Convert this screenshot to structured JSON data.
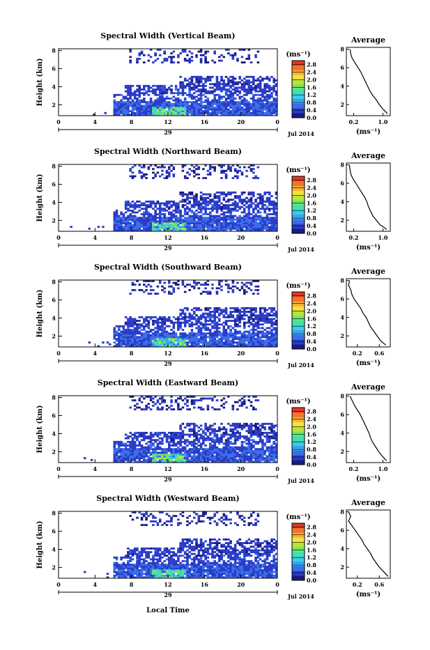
{
  "figure": {
    "xlabel": "Local Time",
    "date_label": "Jul 2014",
    "day_label": "29",
    "colorbar_unit": "(ms⁻¹)",
    "avg_title": "Average",
    "avg_xlabel": "(ms⁻¹)",
    "ylabel": "Height (km)",
    "colorscale": [
      "#1a1a80",
      "#2b3cc8",
      "#3b6fe8",
      "#3aa2f0",
      "#38cfe6",
      "#3fe0b0",
      "#6ee46a",
      "#b8e43a",
      "#f2e23a",
      "#f6b034",
      "#f2742c",
      "#e03a24"
    ]
  },
  "chart_data": [
    {
      "type": "heatmap",
      "title": "Spectral Width (Vertical Beam)",
      "x_ticks": [
        "0",
        "4",
        "8",
        "12",
        "16",
        "20",
        "0"
      ],
      "xlim": [
        0,
        24
      ],
      "y_ticks": [
        "2",
        "4",
        "6",
        "8"
      ],
      "ylim": [
        0.8,
        8.2
      ],
      "colorbar_ticks": [
        "0.0",
        "0.4",
        "0.8",
        "1.2",
        "1.6",
        "2.0",
        "2.4",
        "2.8"
      ],
      "colorbar_range": [
        0.0,
        3.0
      ],
      "avg_profile": {
        "x_ticks": [
          "0.2",
          "1.0"
        ],
        "xlim": [
          0.0,
          1.2
        ],
        "y_ticks": [
          "2",
          "4",
          "6",
          "8"
        ],
        "ylim": [
          0.8,
          8.2
        ],
        "height": [
          8.0,
          7.5,
          7.0,
          6.5,
          6.0,
          5.5,
          5.0,
          4.5,
          4.0,
          3.5,
          3.0,
          2.5,
          2.0,
          1.5,
          1.2,
          1.0
        ],
        "width": [
          0.1,
          0.12,
          0.16,
          0.24,
          0.32,
          0.4,
          0.46,
          0.52,
          0.58,
          0.64,
          0.72,
          0.82,
          0.9,
          1.0,
          1.08,
          1.12
        ]
      }
    },
    {
      "type": "heatmap",
      "title": "Spectral Width (Northward Beam)",
      "x_ticks": [
        "0",
        "4",
        "8",
        "12",
        "16",
        "20",
        "0"
      ],
      "xlim": [
        0,
        24
      ],
      "y_ticks": [
        "2",
        "4",
        "6",
        "8"
      ],
      "ylim": [
        0.8,
        8.2
      ],
      "colorbar_ticks": [
        "0.0",
        "0.4",
        "0.8",
        "1.2",
        "1.6",
        "2.0",
        "2.4",
        "2.8"
      ],
      "colorbar_range": [
        0.0,
        3.0
      ],
      "avg_profile": {
        "x_ticks": [
          "0.2",
          "1.0"
        ],
        "xlim": [
          0.0,
          1.2
        ],
        "y_ticks": [
          "2",
          "4",
          "6",
          "8"
        ],
        "ylim": [
          0.8,
          8.2
        ],
        "height": [
          8.0,
          7.0,
          6.5,
          6.0,
          5.5,
          5.0,
          4.5,
          4.0,
          3.5,
          3.0,
          2.5,
          2.0,
          1.5,
          1.2,
          1.0
        ],
        "width": [
          0.08,
          0.12,
          0.18,
          0.26,
          0.34,
          0.42,
          0.5,
          0.56,
          0.6,
          0.66,
          0.72,
          0.82,
          0.92,
          1.04,
          1.1
        ]
      }
    },
    {
      "type": "heatmap",
      "title": "Spectral Width (Southward Beam)",
      "x_ticks": [
        "0",
        "4",
        "8",
        "12",
        "16",
        "20",
        "0"
      ],
      "xlim": [
        0,
        24
      ],
      "y_ticks": [
        "2",
        "4",
        "6",
        "8"
      ],
      "ylim": [
        0.8,
        8.2
      ],
      "colorbar_ticks": [
        "0.0",
        "0.4",
        "0.8",
        "1.2",
        "1.6",
        "2.0",
        "2.4",
        "2.8"
      ],
      "colorbar_range": [
        0.0,
        3.0
      ],
      "avg_profile": {
        "x_ticks": [
          "0.2",
          "0.6"
        ],
        "xlim": [
          0.0,
          0.8
        ],
        "height": [
          8.0,
          7.5,
          7.0,
          6.5,
          6.0,
          5.5,
          5.0,
          4.5,
          4.0,
          3.5,
          3.0,
          2.5,
          2.0,
          1.5,
          1.0
        ],
        "width": [
          0.06,
          0.04,
          0.08,
          0.1,
          0.14,
          0.2,
          0.26,
          0.3,
          0.36,
          0.4,
          0.44,
          0.5,
          0.56,
          0.62,
          0.72
        ]
      }
    },
    {
      "type": "heatmap",
      "title": "Spectral Width (Eastward Beam)",
      "x_ticks": [
        "0",
        "4",
        "8",
        "12",
        "16",
        "20",
        "0"
      ],
      "xlim": [
        0,
        24
      ],
      "y_ticks": [
        "2",
        "4",
        "6",
        "8"
      ],
      "ylim": [
        0.8,
        8.2
      ],
      "colorbar_ticks": [
        "0.0",
        "0.4",
        "0.8",
        "1.2",
        "1.6",
        "2.0",
        "2.4",
        "2.8"
      ],
      "colorbar_range": [
        0.0,
        3.0
      ],
      "avg_profile": {
        "x_ticks": [
          "0.2",
          "1.0"
        ],
        "xlim": [
          0.0,
          1.2
        ],
        "height": [
          8.0,
          7.5,
          7.0,
          6.5,
          6.0,
          5.5,
          5.0,
          4.5,
          4.0,
          3.5,
          3.0,
          2.5,
          2.0,
          1.5,
          1.0
        ],
        "width": [
          0.1,
          0.16,
          0.22,
          0.3,
          0.38,
          0.44,
          0.5,
          0.56,
          0.62,
          0.66,
          0.72,
          0.8,
          0.88,
          0.98,
          1.1
        ]
      }
    },
    {
      "type": "heatmap",
      "title": "Spectral Width (Westward Beam)",
      "x_ticks": [
        "0",
        "4",
        "8",
        "12",
        "16",
        "20",
        "0"
      ],
      "xlim": [
        0,
        24
      ],
      "y_ticks": [
        "2",
        "4",
        "6",
        "8"
      ],
      "ylim": [
        0.8,
        8.2
      ],
      "colorbar_ticks": [
        "0.0",
        "0.4",
        "0.8",
        "1.2",
        "1.6",
        "2.0",
        "2.4",
        "2.8"
      ],
      "colorbar_range": [
        0.0,
        3.0
      ],
      "avg_profile": {
        "x_ticks": [
          "0.2",
          "0.6"
        ],
        "xlim": [
          0.0,
          0.8
        ],
        "height": [
          8.0,
          7.5,
          7.0,
          6.5,
          6.0,
          5.5,
          5.0,
          4.5,
          4.0,
          3.5,
          3.0,
          2.5,
          2.0,
          1.5,
          1.0
        ],
        "width": [
          0.04,
          0.08,
          0.04,
          0.1,
          0.16,
          0.22,
          0.28,
          0.32,
          0.38,
          0.44,
          0.48,
          0.54,
          0.6,
          0.68,
          0.76
        ]
      }
    }
  ]
}
